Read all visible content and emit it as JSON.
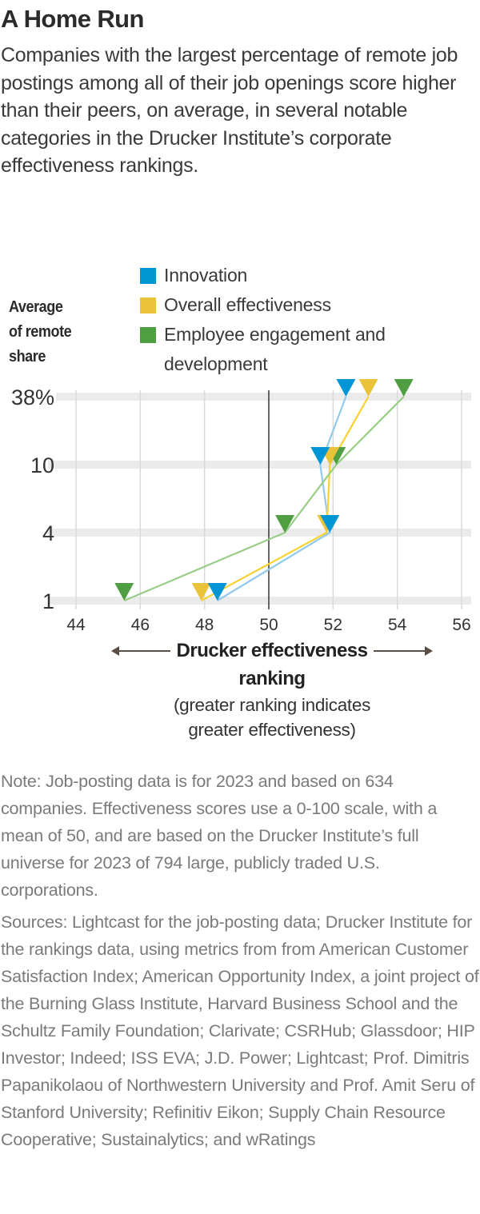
{
  "header": {
    "title": "A Home Run",
    "subtitle": "Companies with the largest percentage of remote job postings among all of their job openings score higher than their peers, on average, in several notable categories in the Drucker Institute’s corporate effectiveness rankings."
  },
  "chart_data": {
    "type": "line",
    "title": "A Home Run",
    "ylabel": "Average of remote share",
    "xlabel": "Drucker effectiveness ranking",
    "xlabel_note": "(greater ranking indicates greater effectiveness)",
    "xlim": [
      44,
      56
    ],
    "xticks": [
      "44",
      "46",
      "48",
      "50",
      "52",
      "54",
      "56"
    ],
    "xtick_values": [
      44,
      46,
      48,
      50,
      52,
      54,
      56
    ],
    "reference_line_x": 50,
    "categories": [
      "38%",
      "10",
      "4",
      "1"
    ],
    "category_values": [
      38,
      10,
      4,
      1
    ],
    "grid": true,
    "legend_position": "top",
    "marker": "down-triangle",
    "series": [
      {
        "name": "Innovation",
        "color": "#0096d6",
        "line_color": "#93c9ec",
        "values": [
          52.4,
          51.6,
          51.9,
          48.4
        ]
      },
      {
        "name": "Overall effectiveness",
        "color": "#eac33a",
        "line_color": "#f7d232",
        "values": [
          53.1,
          51.9,
          51.8,
          47.9
        ]
      },
      {
        "name": "Employee engagement and development",
        "color": "#4f9e42",
        "line_color": "#98cd87",
        "values": [
          54.2,
          52.1,
          50.5,
          45.5
        ]
      }
    ]
  },
  "axis": {
    "y_title_lines": [
      "Average",
      "of remote",
      "share"
    ],
    "x_title_line1": "Drucker effectiveness",
    "x_title_line2": "ranking",
    "x_note_line1": "(greater ranking indicates",
    "x_note_line2": "greater effectiveness)"
  },
  "legend": {
    "items": [
      {
        "label": "Innovation",
        "color": "#0096d6"
      },
      {
        "label": "Overall effectiveness",
        "color": "#eac33a"
      },
      {
        "label": "Employee engagement and development",
        "label_line1": "Employee engagement and",
        "label_line2": "development",
        "color": "#4f9e42"
      }
    ]
  },
  "footer": {
    "note": "Note: Job-posting data is for 2023 and based on 634 companies. Effectiveness scores use a 0-100 scale, with a mean of 50, and are based on the Drucker Institute’s full universe for 2023 of 794 large, publicly traded U.S. corporations.",
    "sources": "Sources: Lightcast for the job-posting data; Drucker Institute for the rankings data, using metrics from from American Customer Satisfaction Index; American Opportunity Index, a joint project of the Burning Glass Institute, Harvard Business School and the Schultz Family Foundation; Clarivate; CSRHub; Glassdoor; HIP Investor; Indeed; ISS EVA; J.D. Power; Lightcast; Prof. Dimitris Papanikolaou of Northwestern University and Prof. Amit Seru of Stanford University; Refinitiv Eikon; Supply Chain Resource Cooperative; Sustainalytics; and wRatings"
  }
}
